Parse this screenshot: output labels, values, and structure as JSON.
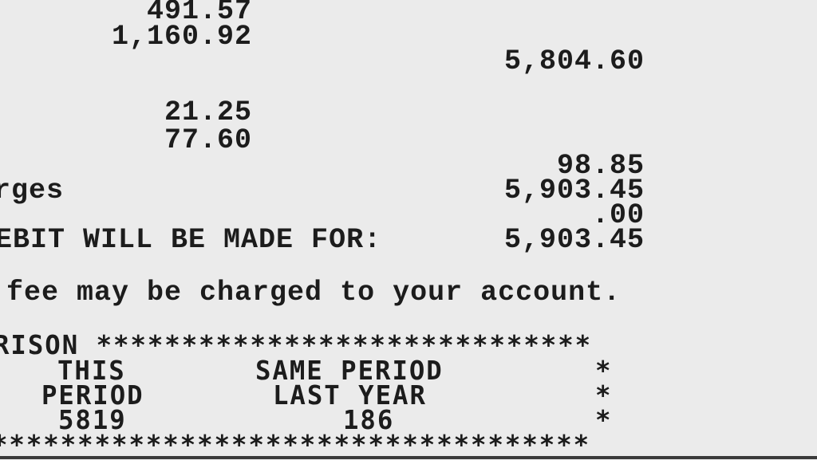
{
  "amounts": {
    "line1": "491.57",
    "line2": "1,160.92",
    "subtotal1": "5,804.60",
    "line3": "21.25",
    "line4": "77.60",
    "subtotal2": "98.85",
    "total_charges_label": "rges",
    "total_charges": "5,903.45",
    "credit": ".00",
    "debit_label": "EBIT WILL BE MADE FOR:",
    "debit_amount": "5,903.45"
  },
  "notice": "fee may be charged to your account.",
  "comparison": {
    "header": "RISON *****************************",
    "col1_line1": "THIS",
    "col1_line2": "PERIOD",
    "col1_value": "5819",
    "col2_line1": "SAME PERIOD",
    "col2_line2": "LAST YEAR",
    "col2_value": "186",
    "border_char": "*",
    "footer": "***********************************"
  }
}
